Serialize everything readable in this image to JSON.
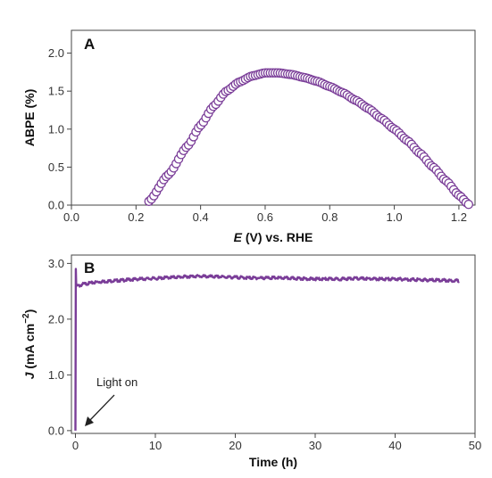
{
  "chart_data": [
    {
      "type": "scatter",
      "panel_label": "A",
      "xlabel_var": "E",
      "xlabel_rest": " (V) vs. RHE",
      "ylabel": "ABPE (%)",
      "xlim": [
        0.0,
        1.25
      ],
      "ylim": [
        0.0,
        2.3
      ],
      "xticks": [
        "0.0",
        "0.2",
        "0.4",
        "0.6",
        "0.8",
        "1.0",
        "1.2"
      ],
      "yticks": [
        "0.0",
        "0.5",
        "1.0",
        "1.5",
        "2.0"
      ],
      "marker": "open-circle",
      "color": "#7a3d98",
      "curve_points": {
        "x": [
          0.24,
          0.3,
          0.36,
          0.4,
          0.44,
          0.48,
          0.52,
          0.56,
          0.6,
          0.64,
          0.68,
          0.72,
          0.76,
          0.8,
          0.84,
          0.88,
          0.92,
          0.96,
          1.0,
          1.04,
          1.08,
          1.12,
          1.16,
          1.2,
          1.23
        ],
        "y": [
          0.05,
          0.4,
          0.78,
          1.05,
          1.3,
          1.5,
          1.62,
          1.7,
          1.74,
          1.74,
          1.72,
          1.68,
          1.63,
          1.56,
          1.48,
          1.38,
          1.27,
          1.14,
          1.0,
          0.85,
          0.68,
          0.5,
          0.32,
          0.13,
          0.01
        ]
      }
    },
    {
      "type": "line",
      "panel_label": "B",
      "xlabel": "Time (h)",
      "ylabel_var": "J",
      "ylabel_rest": " (mA cm",
      "ylabel_sup": "−2",
      "ylabel_close": ")",
      "xlim": [
        -0.5,
        50
      ],
      "ylim": [
        -0.05,
        3.15
      ],
      "xticks": [
        "0",
        "10",
        "20",
        "30",
        "40",
        "50"
      ],
      "yticks": [
        "0.0",
        "1.0",
        "2.0",
        "3.0"
      ],
      "color": "#7a3d98",
      "annotation": "Light on",
      "series": {
        "x": [
          0,
          0.05,
          0.1,
          0.5,
          1,
          2,
          3,
          5,
          8,
          10,
          12,
          15,
          18,
          20,
          22,
          25,
          28,
          30,
          33,
          35,
          38,
          40,
          42,
          45,
          48
        ],
        "y": [
          0.0,
          2.9,
          2.6,
          2.6,
          2.63,
          2.65,
          2.67,
          2.69,
          2.72,
          2.73,
          2.75,
          2.77,
          2.76,
          2.75,
          2.74,
          2.74,
          2.73,
          2.72,
          2.72,
          2.73,
          2.72,
          2.72,
          2.71,
          2.7,
          2.69
        ]
      }
    }
  ]
}
